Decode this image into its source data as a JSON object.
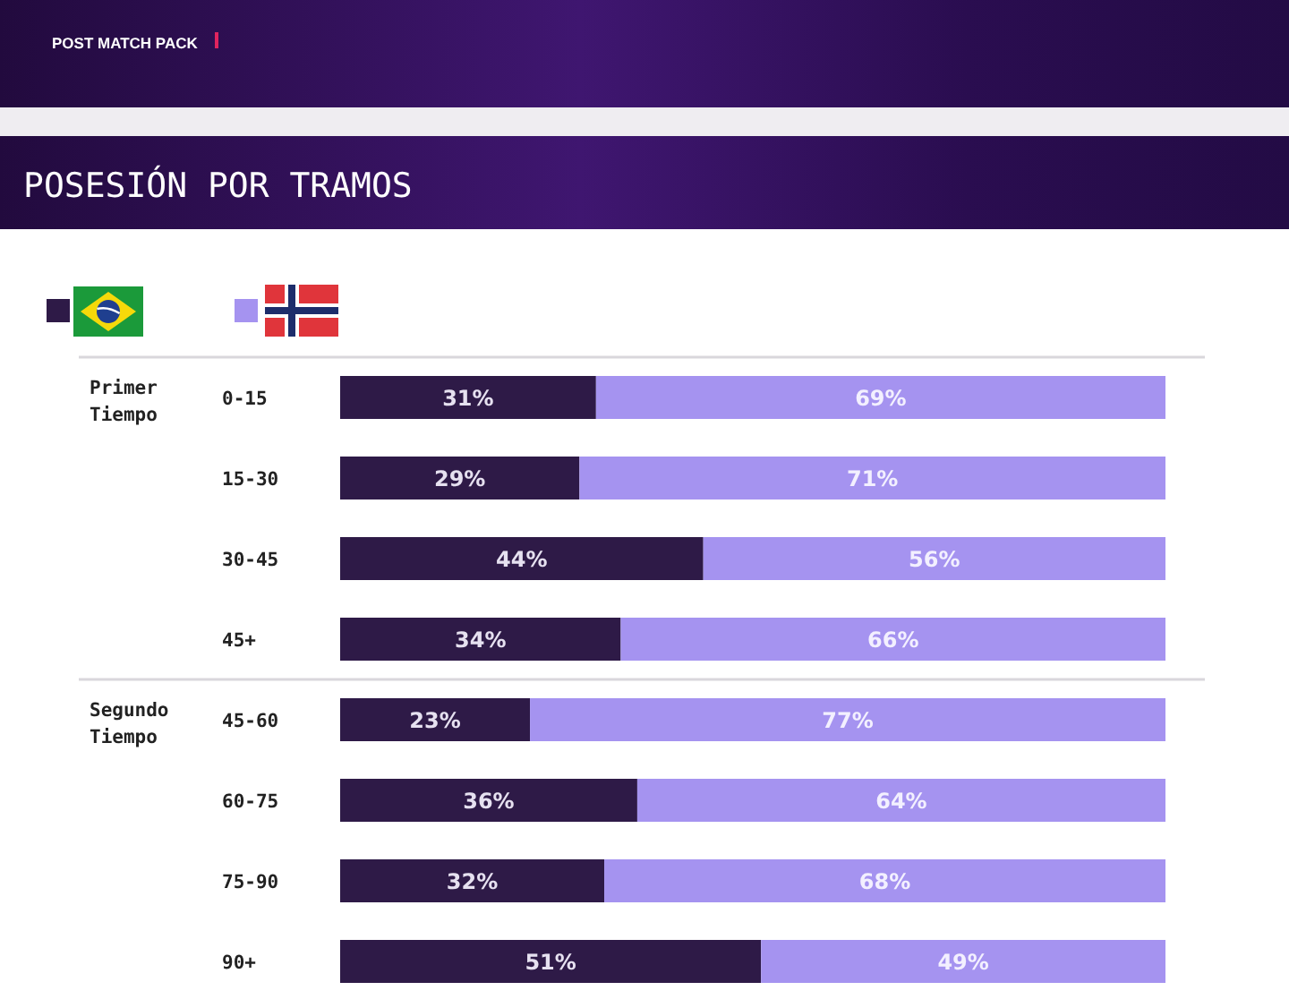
{
  "chart_data": {
    "type": "bar",
    "orientation": "horizontal",
    "stacked": true,
    "title": "POSESIÓN POR TRAMOS",
    "annotations": [
      "POST MATCH PACK",
      "Primer Tiempo",
      "Segundo Tiempo"
    ],
    "categories": [
      "0-15",
      "15-30",
      "30-45",
      "45+",
      "45-60",
      "60-75",
      "75-90",
      "90+"
    ],
    "series": [
      {
        "color": "#2e1a47",
        "values": [
          31,
          29,
          44,
          34,
          23,
          36,
          32,
          51
        ],
        "value_labels": [
          "31%",
          "29%",
          "44%",
          "34%",
          "23%",
          "36%",
          "32%",
          "51%"
        ]
      },
      {
        "color": "#a593f0",
        "values": [
          69,
          71,
          56,
          66,
          77,
          64,
          68,
          49
        ],
        "value_labels": [
          "69%",
          "71%",
          "56%",
          "66%",
          "77%",
          "64%",
          "68%",
          "49%"
        ]
      }
    ],
    "xlim": [
      0,
      100
    ],
    "tick_labels": "y"
  }
}
